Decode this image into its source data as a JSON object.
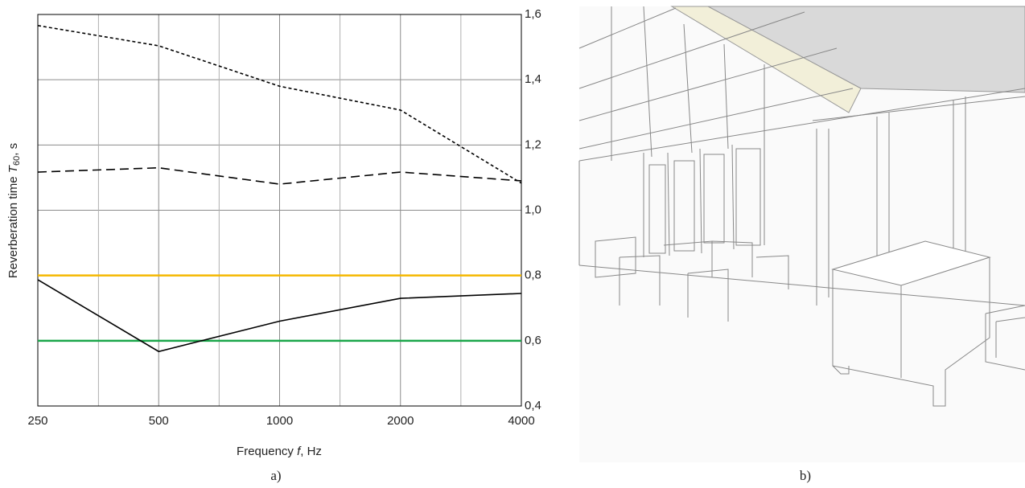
{
  "chart_data": {
    "type": "line",
    "x": [
      250,
      500,
      1000,
      2000,
      4000
    ],
    "xlim": [
      250,
      4000
    ],
    "xlog": true,
    "xticks": [
      250,
      500,
      1000,
      2000,
      4000
    ],
    "xminor": [
      354,
      707,
      1414,
      2828
    ],
    "ylim": [
      0.4,
      1.6
    ],
    "yticks": [
      {
        "value": 0.4,
        "label": "0,4"
      },
      {
        "value": 0.6,
        "label": "0,6"
      },
      {
        "value": 0.8,
        "label": "0,8"
      },
      {
        "value": 1.0,
        "label": "1,0"
      },
      {
        "value": 1.2,
        "label": "1,2"
      },
      {
        "value": 1.4,
        "label": "1,4"
      },
      {
        "value": 1.6,
        "label": "1,6"
      }
    ],
    "grid": true,
    "x_label": {
      "text": "Frequency ",
      "symbol": "f",
      "unit": ", Hz"
    },
    "y_label": {
      "text": "Reverberation time ",
      "symbol": "T",
      "subscript": "60",
      "unit": ", s"
    },
    "series": [
      {
        "color": "#000000",
        "dash": "short",
        "values": [
          1.566,
          1.504,
          1.38,
          1.307,
          1.083
        ]
      },
      {
        "color": "#000000",
        "dash": "long",
        "values": [
          1.117,
          1.13,
          1.08,
          1.117,
          1.09
        ]
      },
      {
        "color": "#000000",
        "dash": "solid",
        "values": [
          0.787,
          0.567,
          0.66,
          0.73,
          0.745
        ]
      }
    ],
    "hlines": [
      {
        "value": 0.8,
        "color": "#f5b800"
      },
      {
        "value": 0.6,
        "color": "#1aa64a"
      }
    ]
  },
  "captions": {
    "a": "a)",
    "b": "b)"
  }
}
